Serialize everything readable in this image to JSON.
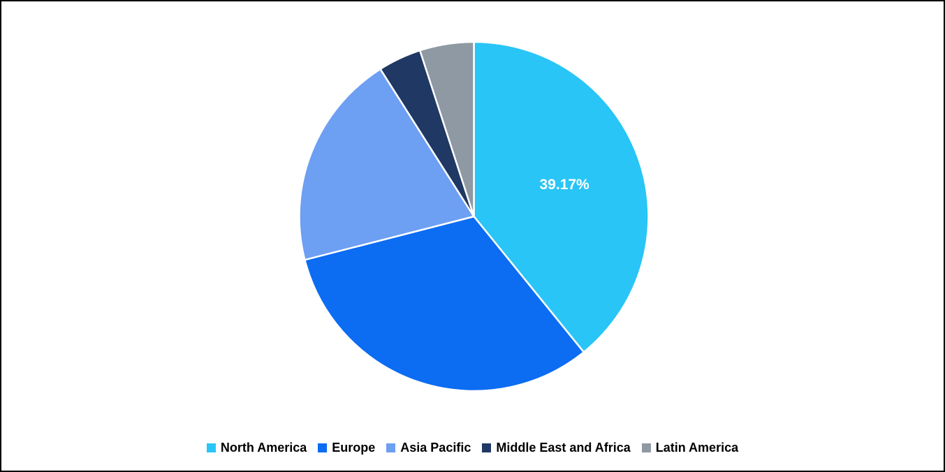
{
  "chart_data": {
    "type": "pie",
    "title": "",
    "start_angle_deg": 0,
    "direction": "clockwise",
    "legend_position": "bottom",
    "slices": [
      {
        "name": "North America",
        "value": 39.17,
        "label": "39.17%",
        "color": "#29C5F6"
      },
      {
        "name": "Europe",
        "value": 31.83,
        "label": "",
        "color": "#0C6CF2"
      },
      {
        "name": "Asia Pacific",
        "value": 20.0,
        "label": "",
        "color": "#6D9FF2"
      },
      {
        "name": "Middle East and Africa",
        "value": 4.0,
        "label": "",
        "color": "#1F3864"
      },
      {
        "name": "Latin America",
        "value": 5.0,
        "label": "",
        "color": "#8F99A3"
      }
    ]
  }
}
